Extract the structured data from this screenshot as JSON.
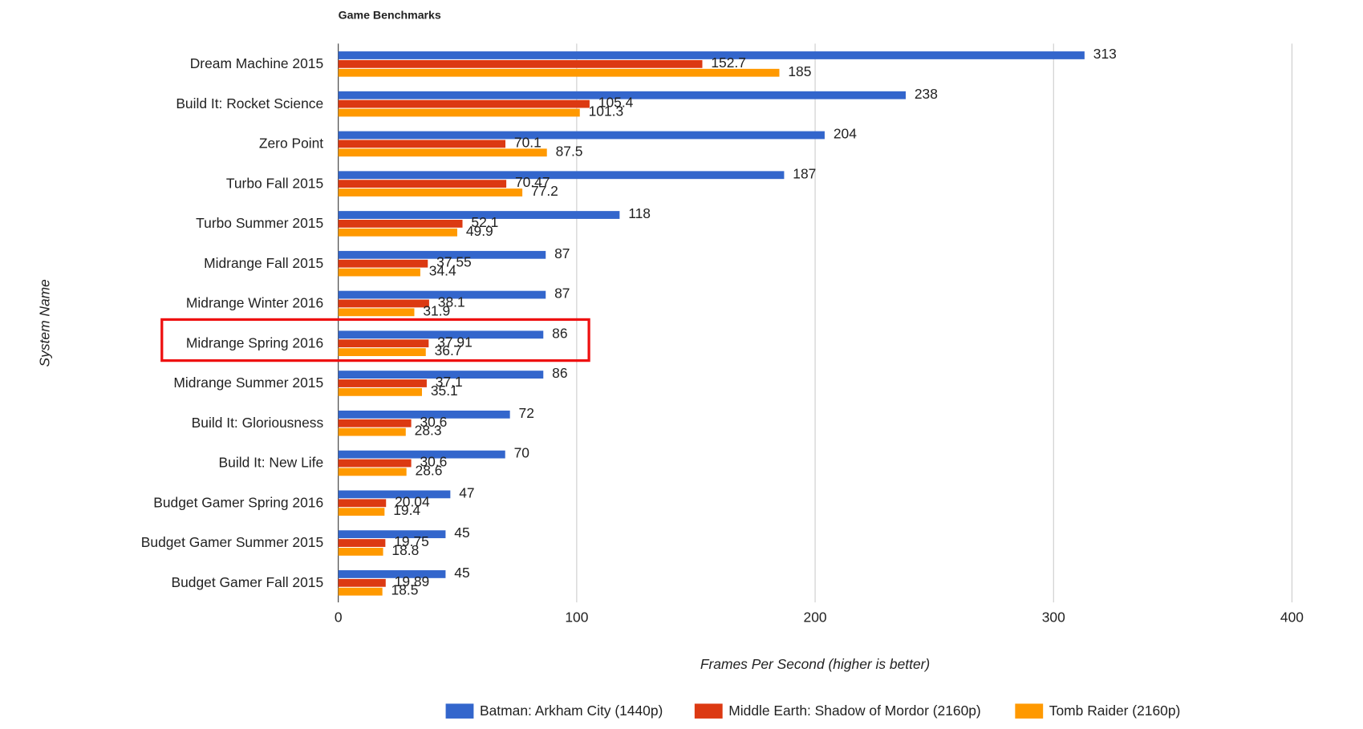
{
  "chart_data": {
    "type": "hbar",
    "title": "Game Benchmarks",
    "x_label": "Frames Per Second (higher is better)",
    "y_label": "System Name",
    "categories": [
      "Dream Machine 2015",
      "Build It: Rocket Science",
      "Zero Point",
      "Turbo Fall 2015",
      "Turbo Summer 2015",
      "Midrange Fall 2015",
      "Midrange Winter 2016",
      "Midrange Spring 2016",
      "Midrange Summer 2015",
      "Build It: Gloriousness",
      "Build It: New Life",
      "Budget Gamer Spring 2016",
      "Budget Gamer Summer 2015",
      "Budget Gamer Fall 2015"
    ],
    "series": [
      {
        "name": "Batman: Arkham City (1440p)",
        "color": "#3366cc",
        "values": [
          313,
          238,
          204,
          187,
          118,
          87,
          87,
          86,
          86,
          72,
          70,
          47,
          45,
          45
        ]
      },
      {
        "name": "Middle Earth: Shadow of Mordor (2160p)",
        "color": "#dc3912",
        "values": [
          152.7,
          105.4,
          70.1,
          70.47,
          52.1,
          37.55,
          38.1,
          37.91,
          37.1,
          30.6,
          30.6,
          20.04,
          19.75,
          19.89
        ]
      },
      {
        "name": "Tomb Raider (2160p)",
        "color": "#ff9900",
        "values": [
          185,
          101.3,
          87.5,
          77.2,
          49.9,
          34.4,
          31.9,
          36.7,
          35.1,
          28.3,
          28.6,
          19.4,
          18.8,
          18.5
        ]
      }
    ],
    "xlim": [
      0,
      400
    ],
    "xticks": [
      0,
      100,
      200,
      300,
      400
    ],
    "grid": true,
    "legend": "bottom"
  }
}
